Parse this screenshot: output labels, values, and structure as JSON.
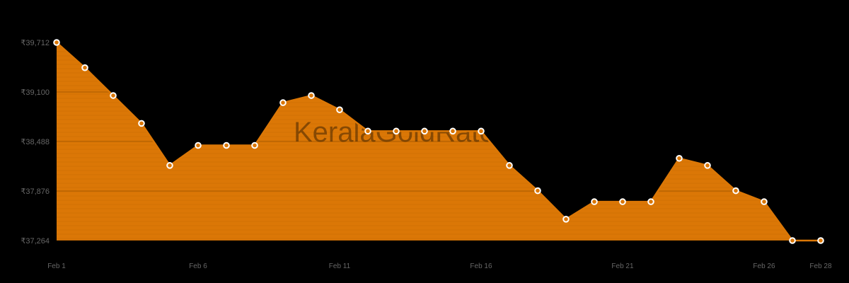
{
  "watermark": "KeralaGoldRate",
  "colors": {
    "background": "#000000",
    "fill": "#DB7706",
    "line": "#DB7706",
    "grid": "#B96403",
    "marker_fill": "#DB7706",
    "marker_stroke": "#FFFFFF",
    "axis_text": "#666666"
  },
  "chart_data": {
    "type": "area",
    "title": "",
    "xlabel": "",
    "ylabel": "",
    "currency_symbol": "₹",
    "x": [
      "Feb 1",
      "Feb 2",
      "Feb 3",
      "Feb 4",
      "Feb 5",
      "Feb 6",
      "Feb 7",
      "Feb 8",
      "Feb 9",
      "Feb 10",
      "Feb 11",
      "Feb 12",
      "Feb 13",
      "Feb 14",
      "Feb 15",
      "Feb 16",
      "Feb 17",
      "Feb 18",
      "Feb 19",
      "Feb 20",
      "Feb 21",
      "Feb 22",
      "Feb 23",
      "Feb 24",
      "Feb 25",
      "Feb 26",
      "Feb 27",
      "Feb 28"
    ],
    "values": [
      39712,
      39400,
      39056,
      38712,
      38192,
      38440,
      38440,
      38440,
      38968,
      39056,
      38880,
      38616,
      38616,
      38616,
      38616,
      38616,
      38192,
      37880,
      37528,
      37744,
      37744,
      37744,
      38280,
      38192,
      37880,
      37744,
      37264,
      37264
    ],
    "ylim": [
      37264,
      39712
    ],
    "yticks": [
      37264,
      37876,
      38488,
      39100,
      39712
    ],
    "ytick_labels": [
      "₹37,264",
      "₹37,876",
      "₹38,488",
      "₹39,100",
      "₹39,712"
    ],
    "xtick_labels": [
      "Feb 1",
      "Feb 6",
      "Feb 11",
      "Feb 16",
      "Feb 21",
      "Feb 26",
      "Feb 28"
    ],
    "xtick_indices": [
      0,
      5,
      10,
      15,
      20,
      25,
      27
    ],
    "grid": true,
    "legend": null,
    "markers": true
  }
}
